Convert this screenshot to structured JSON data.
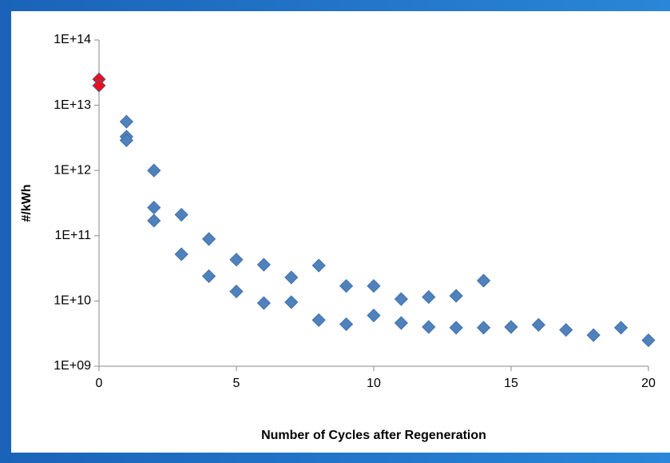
{
  "chart_data": {
    "type": "scatter",
    "xlabel": "Number of Cycles after Regeneration",
    "ylabel": "#/kWh",
    "xlim": [
      0,
      20
    ],
    "xticks": [
      0,
      5,
      10,
      15,
      20
    ],
    "ylim": [
      1000000000.0,
      100000000000000.0
    ],
    "yticks": [
      {
        "value": 1000000000.0,
        "label": "1E+09"
      },
      {
        "value": 10000000000.0,
        "label": "1E+10"
      },
      {
        "value": 100000000000.0,
        "label": "1E+11"
      },
      {
        "value": 1000000000000.0,
        "label": "1E+12"
      },
      {
        "value": 10000000000000.0,
        "label": "1E+13"
      },
      {
        "value": 100000000000000.0,
        "label": "1E+14"
      }
    ],
    "log_y": true,
    "grid": false,
    "series": [
      {
        "color": "#4f81bd",
        "x": [
          1,
          1,
          1,
          2,
          2,
          2,
          3,
          3,
          4,
          4,
          5,
          5,
          6,
          6,
          7,
          7,
          8,
          8,
          9,
          9,
          10,
          10,
          11,
          11,
          12,
          12,
          13,
          13,
          14,
          14,
          15,
          16,
          17,
          18,
          19,
          20
        ],
        "values": [
          5600000000000.0,
          3300000000000.0,
          2900000000000.0,
          1000000000000.0,
          270000000000.0,
          170000000000.0,
          210000000000.0,
          52000000000.0,
          89000000000.0,
          24000000000.0,
          43000000000.0,
          14000000000.0,
          36000000000.0,
          9300000000.0,
          23000000000.0,
          9600000000.0,
          35000000000.0,
          5100000000.0,
          17000000000.0,
          4400000000.0,
          17000000000.0,
          6000000000.0,
          10700000000.0,
          4600000000.0,
          11500000000.0,
          4000000000.0,
          12000000000.0,
          3900000000.0,
          20500000000.0,
          3900000000.0,
          4000000000.0,
          4300000000.0,
          3600000000.0,
          3000000000.0,
          3900000000.0,
          2500000000.0
        ]
      },
      {
        "color": "#e8101c",
        "x": [
          0,
          0
        ],
        "values": [
          25000000000000.0,
          20000000000000.0
        ]
      }
    ]
  }
}
